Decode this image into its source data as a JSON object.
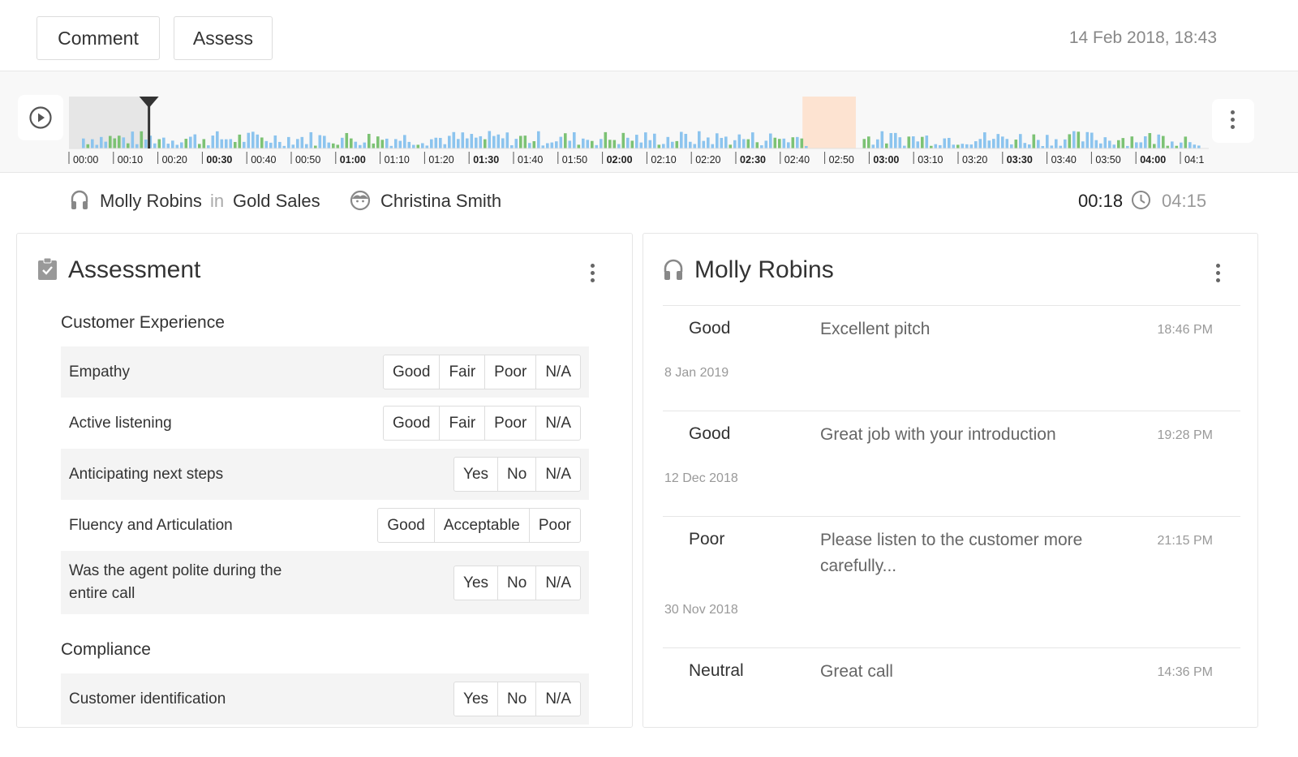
{
  "toolbar": {
    "comment_label": "Comment",
    "assess_label": "Assess",
    "datetime": "14 Feb 2018, 18:43"
  },
  "timeline": {
    "ticks": [
      "00:00",
      "00:10",
      "00:20",
      "00:30",
      "00:40",
      "00:50",
      "01:00",
      "01:10",
      "01:20",
      "01:30",
      "01:40",
      "01:50",
      "02:00",
      "02:10",
      "02:20",
      "02:30",
      "02:40",
      "02:50",
      "03:00",
      "03:10",
      "03:20",
      "03:30",
      "03:40",
      "03:50",
      "04:00",
      "04:1"
    ],
    "bold_ticks": [
      "00:30",
      "01:00",
      "01:30",
      "02:00",
      "02:30",
      "03:00",
      "03:30",
      "04:00"
    ],
    "playhead_seconds": 18,
    "duration_seconds": 255,
    "highlight_seconds": [
      165,
      177
    ],
    "colors": {
      "agent": "#8cc4ee",
      "customer": "#7cc274",
      "played": "#e6e6e6",
      "highlight": "#fde3d1",
      "playhead": "#333333"
    }
  },
  "info": {
    "agent": "Molly Robins",
    "in": "in",
    "team": "Gold Sales",
    "customer": "Christina Smith",
    "current_time": "00:18",
    "total_time": "04:15"
  },
  "assessment": {
    "title": "Assessment",
    "sections": [
      {
        "title": "Customer Experience",
        "rows": [
          {
            "label": "Empathy",
            "options": [
              "Good",
              "Fair",
              "Poor",
              "N/A"
            ]
          },
          {
            "label": "Active listening",
            "options": [
              "Good",
              "Fair",
              "Poor",
              "N/A"
            ]
          },
          {
            "label": "Anticipating next steps",
            "options": [
              "Yes",
              "No",
              "N/A"
            ]
          },
          {
            "label": "Fluency and Articulation",
            "options": [
              "Good",
              "Acceptable",
              "Poor"
            ]
          },
          {
            "label": "Was the agent polite during the entire call",
            "options": [
              "Yes",
              "No",
              "N/A"
            ]
          }
        ]
      },
      {
        "title": "Compliance",
        "rows": [
          {
            "label": "Customer identification",
            "options": [
              "Yes",
              "No",
              "N/A"
            ]
          }
        ]
      }
    ]
  },
  "comments": {
    "title": "Molly Robins",
    "entries": [
      {
        "rating": "Good",
        "text": "Excellent pitch",
        "time": "18:46 PM"
      },
      {
        "date": "8 Jan 2019",
        "rating": "Good",
        "text": "Great job with your introduction",
        "time": "19:28 PM"
      },
      {
        "date": "12 Dec 2018",
        "rating": "Poor",
        "text": "Please listen to the customer more carefully...",
        "time": "21:15 PM"
      },
      {
        "date": "30 Nov 2018",
        "rating": "Neutral",
        "text": "Great call",
        "time": "14:36 PM"
      }
    ]
  }
}
